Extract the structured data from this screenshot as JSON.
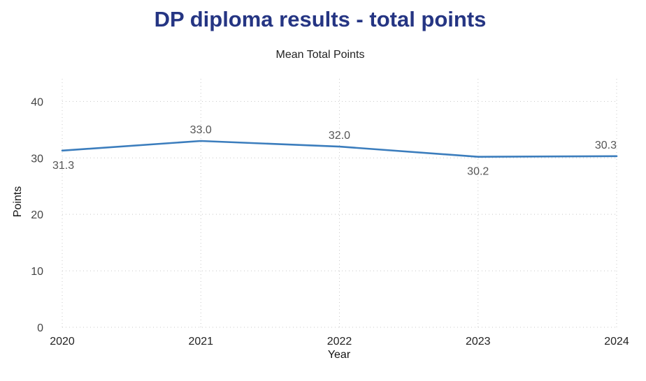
{
  "title": "DP diploma results - total points",
  "subtitle": "Mean Total Points",
  "chart_data": {
    "type": "line",
    "title": "DP diploma results - total points",
    "subtitle": "Mean Total Points",
    "xlabel": "Year",
    "ylabel": "Points",
    "x": [
      "2020",
      "2021",
      "2022",
      "2023",
      "2024"
    ],
    "series": [
      {
        "values": [
          31.3,
          33.0,
          32.0,
          30.2,
          30.3
        ],
        "labels": [
          "31.3",
          "33.0",
          "32.0",
          "30.2",
          "30.3"
        ]
      }
    ],
    "ylim": [
      0,
      44
    ],
    "yticks": [
      0,
      10,
      20,
      30,
      40
    ],
    "grid": "dotted",
    "line_color": "#3b7dbd",
    "title_color": "#253583"
  }
}
